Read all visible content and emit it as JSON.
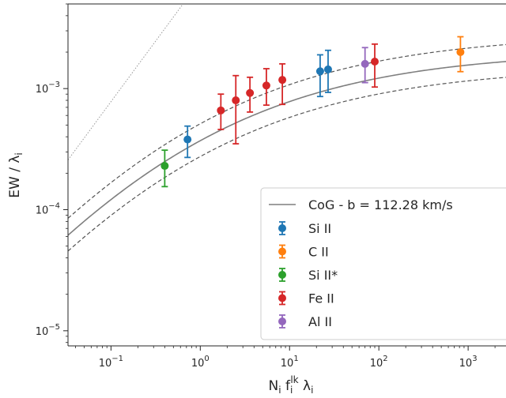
{
  "chart_data": {
    "type": "scatter",
    "xscale": "log",
    "yscale": "log",
    "xlim": [
      0.033,
      3000
    ],
    "ylim": [
      7.5e-06,
      0.005
    ],
    "xlabel": "N_i f_i^lk λ_i",
    "ylabel": "EW / λ_i",
    "xticks": [
      {
        "value": 0.1,
        "base": "10",
        "exp": "−1"
      },
      {
        "value": 1,
        "base": "10",
        "exp": "0"
      },
      {
        "value": 10,
        "base": "10",
        "exp": "1"
      },
      {
        "value": 100,
        "base": "10",
        "exp": "2"
      },
      {
        "value": 1000,
        "base": "10",
        "exp": "3"
      }
    ],
    "yticks": [
      {
        "value": 1e-05,
        "base": "10",
        "exp": "−5"
      },
      {
        "value": 0.0001,
        "base": "10",
        "exp": "−4"
      },
      {
        "value": 0.001,
        "base": "10",
        "exp": "−3"
      }
    ],
    "grid": false,
    "legend_position": "lower-right",
    "cog_label": "CoG - b = 112.28 km/s",
    "colors": {
      "cog": "#7f7f7f",
      "dashed": "#555555",
      "linear": "#999999"
    },
    "series": [
      {
        "name": "Si II",
        "color": "#1f77b4",
        "points": [
          {
            "x": 0.72,
            "y": 0.00038,
            "ylo": 0.00027,
            "yhi": 0.00049
          },
          {
            "x": 22,
            "y": 0.00139,
            "ylo": 0.00086,
            "yhi": 0.0019
          },
          {
            "x": 27,
            "y": 0.00144,
            "ylo": 0.00093,
            "yhi": 0.00207
          }
        ]
      },
      {
        "name": "C II",
        "color": "#ff7f0e",
        "points": [
          {
            "x": 820,
            "y": 0.002,
            "ylo": 0.00138,
            "yhi": 0.00268
          }
        ]
      },
      {
        "name": "Si II*",
        "color": "#2ca02c",
        "points": [
          {
            "x": 0.4,
            "y": 0.00023,
            "ylo": 0.000155,
            "yhi": 0.00031
          }
        ]
      },
      {
        "name": "Fe II",
        "color": "#d62728",
        "points": [
          {
            "x": 1.7,
            "y": 0.00066,
            "ylo": 0.00046,
            "yhi": 0.0009
          },
          {
            "x": 2.5,
            "y": 0.0008,
            "ylo": 0.00035,
            "yhi": 0.00128
          },
          {
            "x": 3.6,
            "y": 0.00092,
            "ylo": 0.00064,
            "yhi": 0.00124
          },
          {
            "x": 5.5,
            "y": 0.00106,
            "ylo": 0.00073,
            "yhi": 0.00146
          },
          {
            "x": 8.3,
            "y": 0.00118,
            "ylo": 0.00074,
            "yhi": 0.0016
          },
          {
            "x": 90,
            "y": 0.00167,
            "ylo": 0.00103,
            "yhi": 0.00233
          }
        ]
      },
      {
        "name": "Al II",
        "color": "#9467bd",
        "points": [
          {
            "x": 70,
            "y": 0.0016,
            "ylo": 0.00112,
            "yhi": 0.00218
          }
        ]
      }
    ]
  }
}
